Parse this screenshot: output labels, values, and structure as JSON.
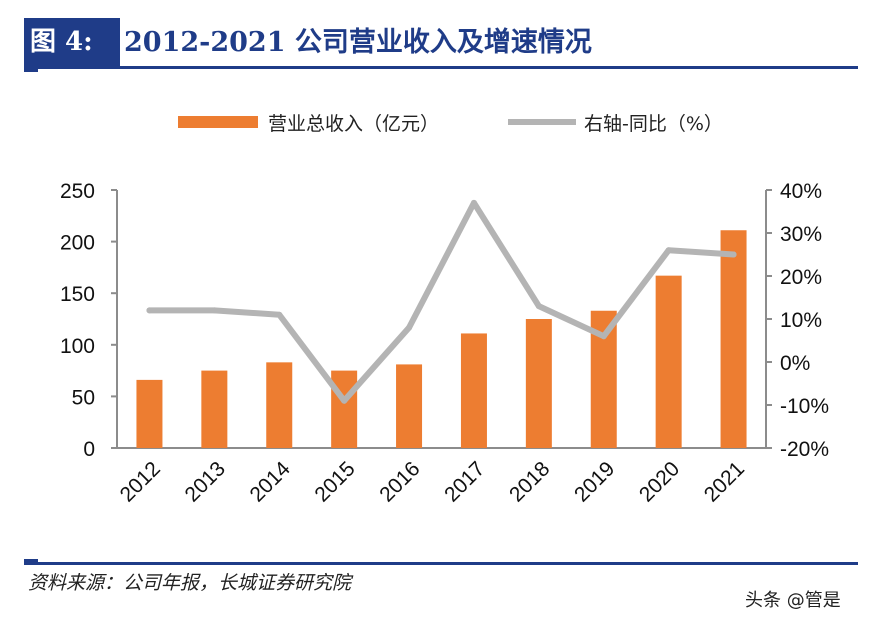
{
  "header": {
    "figure_label": "图 4:",
    "title": "2012-2021 公司营业收入及增速情况"
  },
  "footer": {
    "source": "资料来源：公司年报，长城证券研究院",
    "watermark": "头条 @管是"
  },
  "colors": {
    "bar": "#ed7d31",
    "line": "#b4b4b4",
    "axis": "#8c8c8c",
    "brand": "#1f3c88"
  },
  "chart_data": {
    "type": "bar",
    "title": "2012-2021 公司营业收入及增速情况",
    "categories": [
      "2012",
      "2013",
      "2014",
      "2015",
      "2016",
      "2017",
      "2018",
      "2019",
      "2020",
      "2021"
    ],
    "series": [
      {
        "name": "营业总收入（亿元）",
        "type": "bar",
        "axis": "left",
        "values": [
          66,
          75,
          83,
          75,
          81,
          111,
          125,
          133,
          167,
          211
        ]
      },
      {
        "name": "右轴-同比（%）",
        "type": "line",
        "axis": "right",
        "values": [
          12,
          12,
          11,
          -9,
          8,
          37,
          13,
          6,
          26,
          25
        ]
      }
    ],
    "y_left": {
      "min": 0,
      "max": 250,
      "ticks": [
        "0",
        "50",
        "100",
        "150",
        "200",
        "250"
      ],
      "tick_values": [
        0,
        50,
        100,
        150,
        200,
        250
      ]
    },
    "y_right": {
      "min": -20,
      "max": 40,
      "ticks": [
        "-20%",
        "-10%",
        "0%",
        "10%",
        "20%",
        "30%",
        "40%"
      ],
      "tick_values": [
        -20,
        -10,
        0,
        10,
        20,
        30,
        40
      ]
    },
    "legend_position": "top",
    "grid": false
  }
}
